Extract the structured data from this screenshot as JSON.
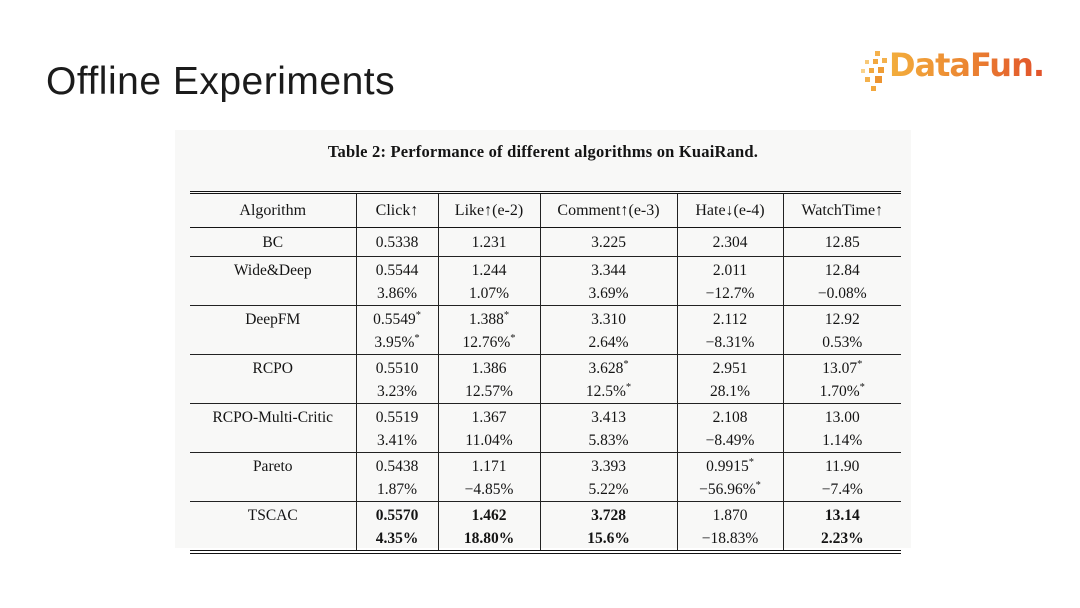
{
  "slide": {
    "title": "Offline Experiments",
    "logo_text": "DataFun."
  },
  "colors": {
    "logo_gradient_start": "#F3AE3C",
    "logo_gradient_end": "#E1512A",
    "paper_background": "#f8f8f7",
    "text": "#141414"
  },
  "table": {
    "caption": "Table 2: Performance of different algorithms on KuaiRand.",
    "columns": [
      "Algorithm",
      "Click↑",
      "Like↑(e-2)",
      "Comment↑(e-3)",
      "Hate↓(e-4)",
      "WatchTime↑"
    ],
    "rows": [
      {
        "name": "BC",
        "lines": [
          [
            "0.5338",
            "1.231",
            "3.225",
            "2.304",
            "12.85"
          ]
        ]
      },
      {
        "name": "Wide&Deep",
        "lines": [
          [
            "0.5544",
            "1.244",
            "3.344",
            "2.011",
            "12.84"
          ],
          [
            "3.86%",
            "1.07%",
            "3.69%",
            "−12.7%",
            "−0.08%"
          ]
        ]
      },
      {
        "name": "DeepFM",
        "lines": [
          [
            "0.5549*",
            "1.388*",
            "3.310",
            "2.112",
            "12.92"
          ],
          [
            "3.95%*",
            "12.76%*",
            "2.64%",
            "−8.31%",
            "0.53%"
          ]
        ]
      },
      {
        "name": "RCPO",
        "lines": [
          [
            "0.5510",
            "1.386",
            "3.628*",
            "2.951",
            "13.07*"
          ],
          [
            "3.23%",
            "12.57%",
            "12.5%*",
            "28.1%",
            "1.70%*"
          ]
        ]
      },
      {
        "name": "RCPO-Multi-Critic",
        "lines": [
          [
            "0.5519",
            "1.367",
            "3.413",
            "2.108",
            "13.00"
          ],
          [
            "3.41%",
            "11.04%",
            "5.83%",
            "−8.49%",
            "1.14%"
          ]
        ]
      },
      {
        "name": "Pareto",
        "lines": [
          [
            "0.5438",
            "1.171",
            "3.393",
            "0.9915*",
            "11.90"
          ],
          [
            "1.87%",
            "−4.85%",
            "5.22%",
            "−56.96%*",
            "−7.4%"
          ]
        ]
      },
      {
        "name": "TSCAC",
        "lines": [
          [
            "0.5570",
            "1.462",
            "3.728",
            "1.870",
            "13.14"
          ],
          [
            "4.35%",
            "18.80%",
            "15.6%",
            "−18.83%",
            "2.23%"
          ]
        ],
        "bold": [
          [
            true,
            true,
            true,
            false,
            true
          ],
          [
            true,
            true,
            true,
            false,
            true
          ]
        ]
      }
    ]
  }
}
